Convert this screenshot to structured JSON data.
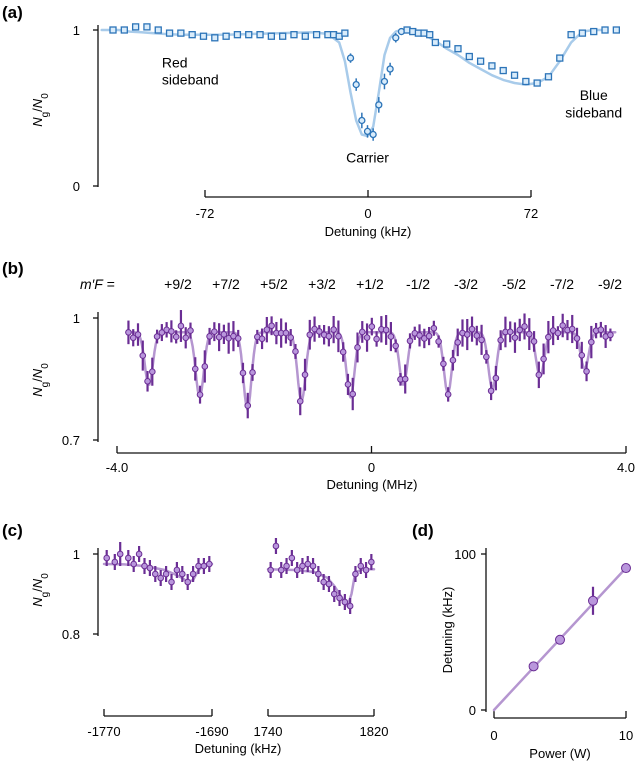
{
  "colors": {
    "blue_point": "#2c74b8",
    "blue_face": "#d9ecfb",
    "blue_fit": "#a8cbea",
    "purple_point": "#6a2d94",
    "purple_face": "#b996dc",
    "purple_fit": "#b596d0",
    "axis": "#111111"
  },
  "chart_data": [
    {
      "panel": "(a)",
      "type": "scatter",
      "xlabel": "Detuning (kHz)",
      "ylabel": "Ng/N0",
      "xlim": [
        -90,
        90
      ],
      "ylim": [
        0,
        1
      ],
      "xticks": [
        -72,
        0,
        72
      ],
      "xtick_labels": [
        "-72",
        "0",
        "72"
      ],
      "yticks": [
        0,
        1
      ],
      "ytick_labels": [
        "0",
        "1"
      ],
      "annotations": [
        {
          "text": "Red",
          "x": -72,
          "y": 0.76
        },
        {
          "text": "sideband",
          "x": -72,
          "y": 0.65
        },
        {
          "text": "Carrier",
          "x": 0,
          "y": 0.15
        },
        {
          "text": "Blue",
          "x": 80,
          "y": 0.55
        },
        {
          "text": "sideband",
          "x": 80,
          "y": 0.44
        }
      ],
      "fit": {
        "x": [
          -94,
          -88,
          -84,
          -80,
          -76,
          -72,
          -66,
          -60,
          -50,
          -40,
          -30,
          -20,
          -14,
          -10,
          -8,
          -6,
          -4,
          -2,
          0,
          2,
          4,
          6,
          8,
          10,
          12,
          14,
          16,
          20,
          24,
          28,
          32,
          36,
          40,
          44,
          48,
          52,
          56,
          60,
          64,
          68,
          72,
          76,
          80,
          84
        ],
        "y": [
          1.0,
          1.0,
          0.99,
          0.985,
          0.98,
          0.975,
          0.97,
          0.97,
          0.97,
          0.975,
          0.98,
          0.985,
          0.975,
          0.92,
          0.8,
          0.6,
          0.42,
          0.33,
          0.32,
          0.38,
          0.6,
          0.84,
          0.95,
          0.99,
          1.0,
          1.0,
          1.0,
          0.97,
          0.93,
          0.88,
          0.84,
          0.79,
          0.75,
          0.71,
          0.68,
          0.66,
          0.65,
          0.66,
          0.7,
          0.8,
          0.92,
          0.99,
          1.0,
          1.0
        ]
      },
      "series": [
        {
          "marker": "square",
          "x": [
            -90,
            -86,
            -82,
            -78,
            -74,
            -70,
            -66,
            -62,
            -58,
            -54,
            -50,
            -46,
            -42,
            -38,
            -34,
            -30,
            -26,
            -22,
            -18,
            -14,
            -12,
            -10,
            -8,
            -6,
            -4,
            -2,
            0,
            2,
            4,
            6,
            8,
            10,
            12,
            14,
            16,
            18,
            20,
            22,
            24,
            28,
            32,
            36,
            40,
            44,
            48,
            52,
            56,
            60,
            64,
            68,
            72,
            76,
            80,
            84,
            88
          ],
          "y": [
            1.0,
            1.0,
            1.02,
            1.02,
            1.0,
            0.98,
            0.98,
            0.97,
            0.96,
            0.95,
            0.96,
            0.97,
            0.97,
            0.97,
            0.96,
            0.96,
            0.97,
            0.96,
            0.97,
            0.97,
            0.97,
            0.96,
            0.98,
            0.82,
            0.65,
            0.42,
            0.35,
            0.33,
            0.52,
            0.67,
            0.75,
            0.95,
            0.99,
            1.0,
            0.99,
            0.98,
            0.98,
            0.97,
            0.92,
            0.91,
            0.88,
            0.83,
            0.8,
            0.77,
            0.74,
            0.71,
            0.67,
            0.66,
            0.7,
            0.82,
            0.97,
            0.98,
            0.99,
            1.0,
            1.0
          ],
          "err": [
            0,
            0,
            0,
            0,
            0,
            0,
            0,
            0,
            0,
            0,
            0,
            0,
            0,
            0,
            0,
            0,
            0,
            0,
            0,
            0,
            0,
            0,
            0,
            0.03,
            0.04,
            0.05,
            0.04,
            0.04,
            0.05,
            0.05,
            0.04,
            0.03,
            0.02,
            0,
            0,
            0,
            0,
            0,
            0,
            0,
            0,
            0,
            0,
            0,
            0,
            0,
            0,
            0,
            0,
            0,
            0,
            0,
            0,
            0,
            0
          ]
        }
      ]
    },
    {
      "panel": "(b)",
      "type": "scatter",
      "xlabel": "Detuning (MHz)",
      "ylabel": "Ng/N0",
      "xlim": [
        -4.0,
        4.0
      ],
      "ylim": [
        0.7,
        1.0
      ],
      "xticks": [
        -4.0,
        0,
        4.0
      ],
      "xtick_labels": [
        "-4.0",
        "0",
        "4.0"
      ],
      "yticks": [
        0.7,
        1.0
      ],
      "ytick_labels": [
        "0.7",
        "1"
      ],
      "top_label_prefix": "m′F =",
      "top_labels": [
        "+9/2",
        "+7/2",
        "+5/2",
        "+3/2",
        "+1/2",
        "-1/2",
        "-3/2",
        "-5/2",
        "-7/2",
        "-9/2"
      ],
      "dips": [
        {
          "center": -3.5,
          "depth": 0.13
        },
        {
          "center": -2.7,
          "depth": 0.16
        },
        {
          "center": -1.95,
          "depth": 0.19
        },
        {
          "center": -1.1,
          "depth": 0.17
        },
        {
          "center": -0.33,
          "depth": 0.16
        },
        {
          "center": 0.5,
          "depth": 0.13
        },
        {
          "center": 1.2,
          "depth": 0.15
        },
        {
          "center": 1.9,
          "depth": 0.14
        },
        {
          "center": 2.65,
          "depth": 0.11
        },
        {
          "center": 3.35,
          "depth": 0.09
        }
      ],
      "baseline": 0.965
    },
    {
      "panel": "(c)",
      "type": "scatter",
      "xlabel": "Detuning (kHz)",
      "ylabel": "Ng/N0",
      "ylim": [
        0.8,
        1.0
      ],
      "yticks": [
        0.8,
        1.0
      ],
      "ytick_labels": [
        "0.8",
        "1"
      ],
      "subpanels": [
        {
          "xlim": [
            -1770,
            -1690
          ],
          "xticks": [
            -1770,
            -1690
          ],
          "xtick_labels": [
            "-1770",
            "-1690"
          ],
          "fit": {
            "x": [
              -1770,
              -1755,
              -1740,
              -1725,
              -1718,
              -1712,
              -1708,
              -1704,
              -1700,
              -1695,
              -1690
            ],
            "y": [
              0.975,
              0.974,
              0.97,
              0.96,
              0.95,
              0.94,
              0.93,
              0.935,
              0.96,
              0.974,
              0.975
            ]
          },
          "x": [
            -1768,
            -1762,
            -1758,
            -1752,
            -1748,
            -1744,
            -1740,
            -1736,
            -1732,
            -1728,
            -1724,
            -1720,
            -1716,
            -1712,
            -1708,
            -1704,
            -1700,
            -1696,
            -1692
          ],
          "y": [
            0.99,
            0.98,
            1.0,
            0.99,
            0.975,
            1.0,
            0.97,
            0.965,
            0.95,
            0.94,
            0.95,
            0.93,
            0.96,
            0.95,
            0.93,
            0.95,
            0.97,
            0.97,
            0.975
          ],
          "err": [
            0.02,
            0.02,
            0.03,
            0.02,
            0.02,
            0.02,
            0.02,
            0.02,
            0.02,
            0.02,
            0.02,
            0.02,
            0.02,
            0.02,
            0.02,
            0.02,
            0.02,
            0.02,
            0.02
          ]
        },
        {
          "xlim": [
            1740,
            1820
          ],
          "xticks": [
            1740,
            1820
          ],
          "xtick_labels": [
            "1740",
            "1820"
          ],
          "fit": {
            "x": [
              1740,
              1760,
              1775,
              1785,
              1790,
              1796,
              1800,
              1803,
              1806,
              1812,
              1820
            ],
            "y": [
              0.962,
              0.96,
              0.955,
              0.94,
              0.92,
              0.89,
              0.87,
              0.9,
              0.955,
              0.962,
              0.962
            ]
          },
          "x": [
            1742,
            1746,
            1750,
            1754,
            1758,
            1762,
            1766,
            1770,
            1774,
            1778,
            1782,
            1786,
            1790,
            1794,
            1798,
            1802,
            1806,
            1810,
            1814,
            1818
          ],
          "y": [
            0.96,
            1.02,
            0.96,
            0.97,
            0.99,
            0.96,
            0.97,
            0.975,
            0.97,
            0.95,
            0.93,
            0.925,
            0.9,
            0.89,
            0.88,
            0.87,
            0.95,
            0.97,
            0.96,
            0.98
          ],
          "err": [
            0.02,
            0.02,
            0.02,
            0.02,
            0.02,
            0.02,
            0.02,
            0.02,
            0.02,
            0.02,
            0.02,
            0.02,
            0.02,
            0.02,
            0.02,
            0.02,
            0.02,
            0.02,
            0.02,
            0.02
          ]
        }
      ]
    },
    {
      "panel": "(d)",
      "type": "scatter",
      "xlabel": "Power (W)",
      "ylabel": "Detuning (kHz)",
      "xlim": [
        0,
        10
      ],
      "ylim": [
        0,
        100
      ],
      "xticks": [
        0,
        10
      ],
      "xtick_labels": [
        "0",
        "10"
      ],
      "yticks": [
        0,
        100
      ],
      "ytick_labels": [
        "0",
        "100"
      ],
      "x": [
        3,
        5,
        7.5,
        10
      ],
      "y": [
        28,
        45,
        70,
        91
      ],
      "err": [
        0,
        0,
        9,
        0
      ],
      "fit": {
        "x": [
          0,
          10
        ],
        "y": [
          0,
          91
        ]
      }
    }
  ]
}
